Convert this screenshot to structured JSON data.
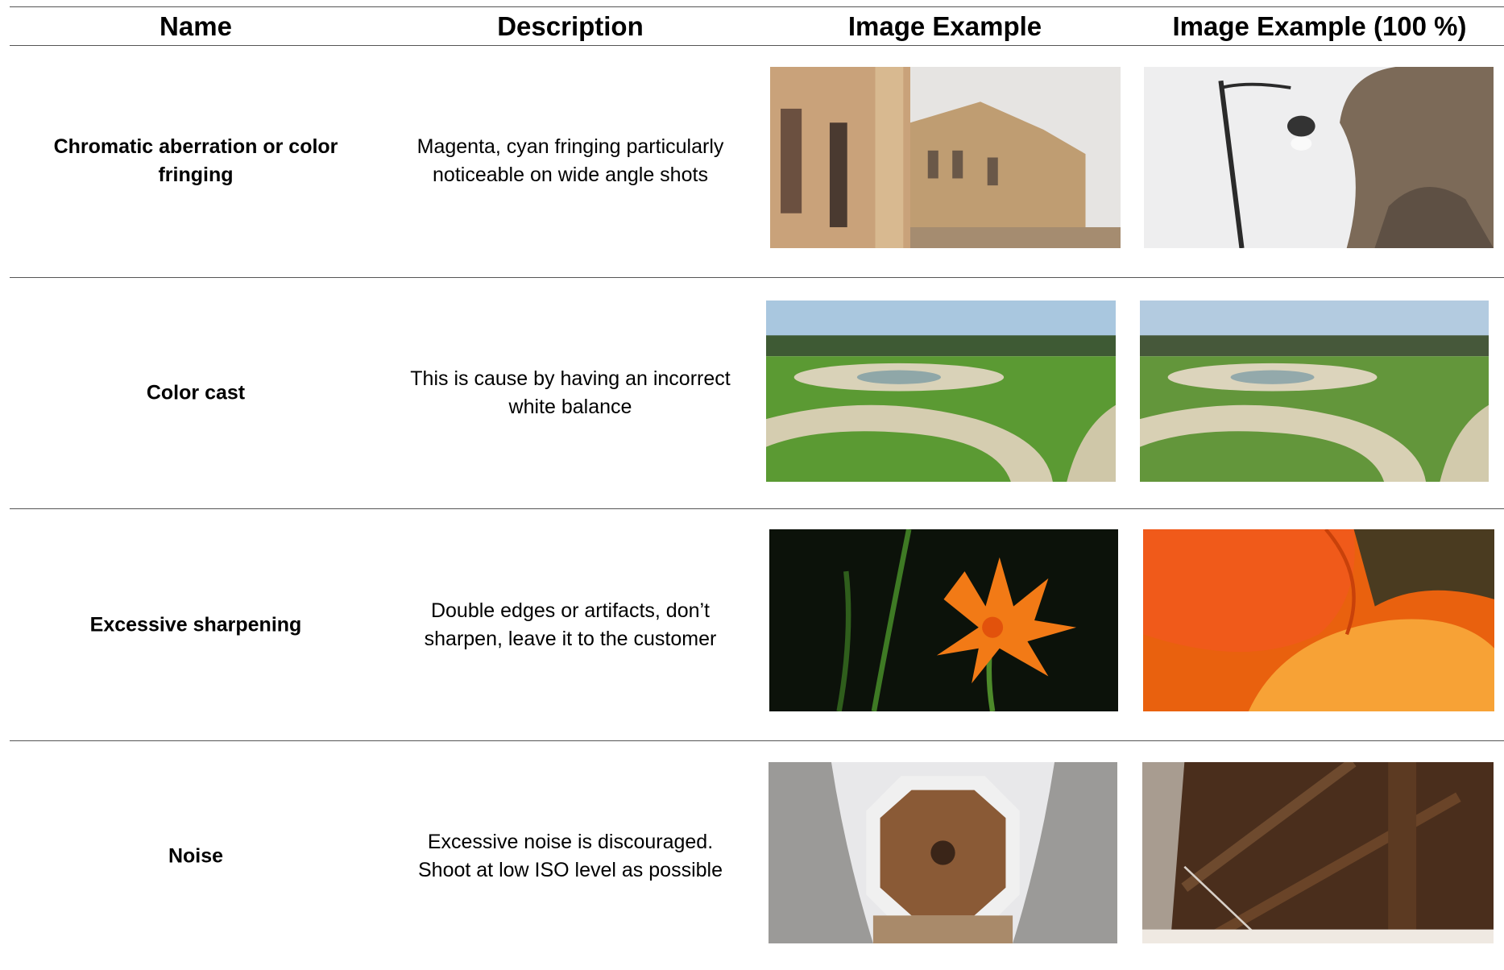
{
  "table": {
    "header": [
      "Name",
      "Description",
      "Image Example",
      "Image Example (100 %)"
    ],
    "rows": [
      {
        "name": [
          "Chromatic aberration or color",
          "fringing"
        ],
        "description": [
          "Magenta, cyan fringing particularly",
          "noticeable on wide angle shots"
        ]
      },
      {
        "name": [
          "Color cast"
        ],
        "description": [
          "This is cause by having an incorrect",
          "white balance"
        ]
      },
      {
        "name": [
          "Excessive sharpening"
        ],
        "description": [
          "Double edges or artifacts, don’t",
          "sharpen, leave it to the customer"
        ]
      },
      {
        "name": [
          "Noise"
        ],
        "description": [
          "Excessive noise is discouraged.",
          "Shoot at low ISO level as possible"
        ]
      }
    ]
  }
}
